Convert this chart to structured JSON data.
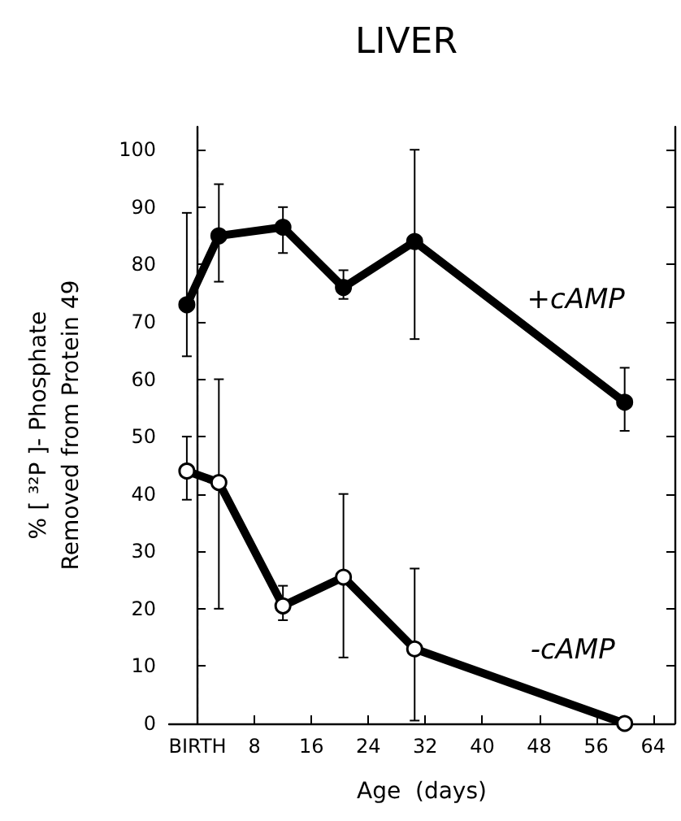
{
  "chart_data": {
    "type": "line",
    "title": "LIVER",
    "xlabel": "Age  (days)",
    "ylabel": "% [ ³²P ]- Phosphate\nRemoved from Protein 49",
    "x": [
      -1.5,
      3,
      12,
      20.5,
      30.5,
      60
    ],
    "series": [
      {
        "name": "+cAMP",
        "color": "#000000",
        "values": [
          73,
          85,
          86.5,
          76,
          84,
          56
        ],
        "errors": [
          [
            64,
            89
          ],
          [
            77,
            94
          ],
          [
            82,
            90
          ],
          [
            74,
            79
          ],
          [
            67,
            100
          ],
          [
            51,
            62
          ]
        ]
      },
      {
        "name": "-cAMP",
        "color": "#000000",
        "values": [
          44,
          42,
          20.5,
          25.5,
          13,
          0
        ],
        "errors": [
          [
            39,
            50
          ],
          [
            20,
            60
          ],
          [
            18,
            24
          ],
          [
            11.5,
            40
          ],
          [
            0.5,
            27
          ],
          null
        ]
      }
    ],
    "xlim": [
      -4,
      67
    ],
    "xticks": [
      {
        "value": 0,
        "label": "BIRTH"
      },
      8,
      16,
      24,
      32,
      40,
      48,
      56,
      64
    ],
    "ylim": [
      0,
      104
    ],
    "yticks": [
      0,
      10,
      20,
      30,
      40,
      50,
      60,
      70,
      80,
      90,
      100
    ],
    "ref_lines": [
      {
        "axis": "x",
        "value": 0,
        "label": null,
        "line_style": "dashed"
      }
    ],
    "marker": "circle",
    "line_style": "solid",
    "grid": false
  }
}
